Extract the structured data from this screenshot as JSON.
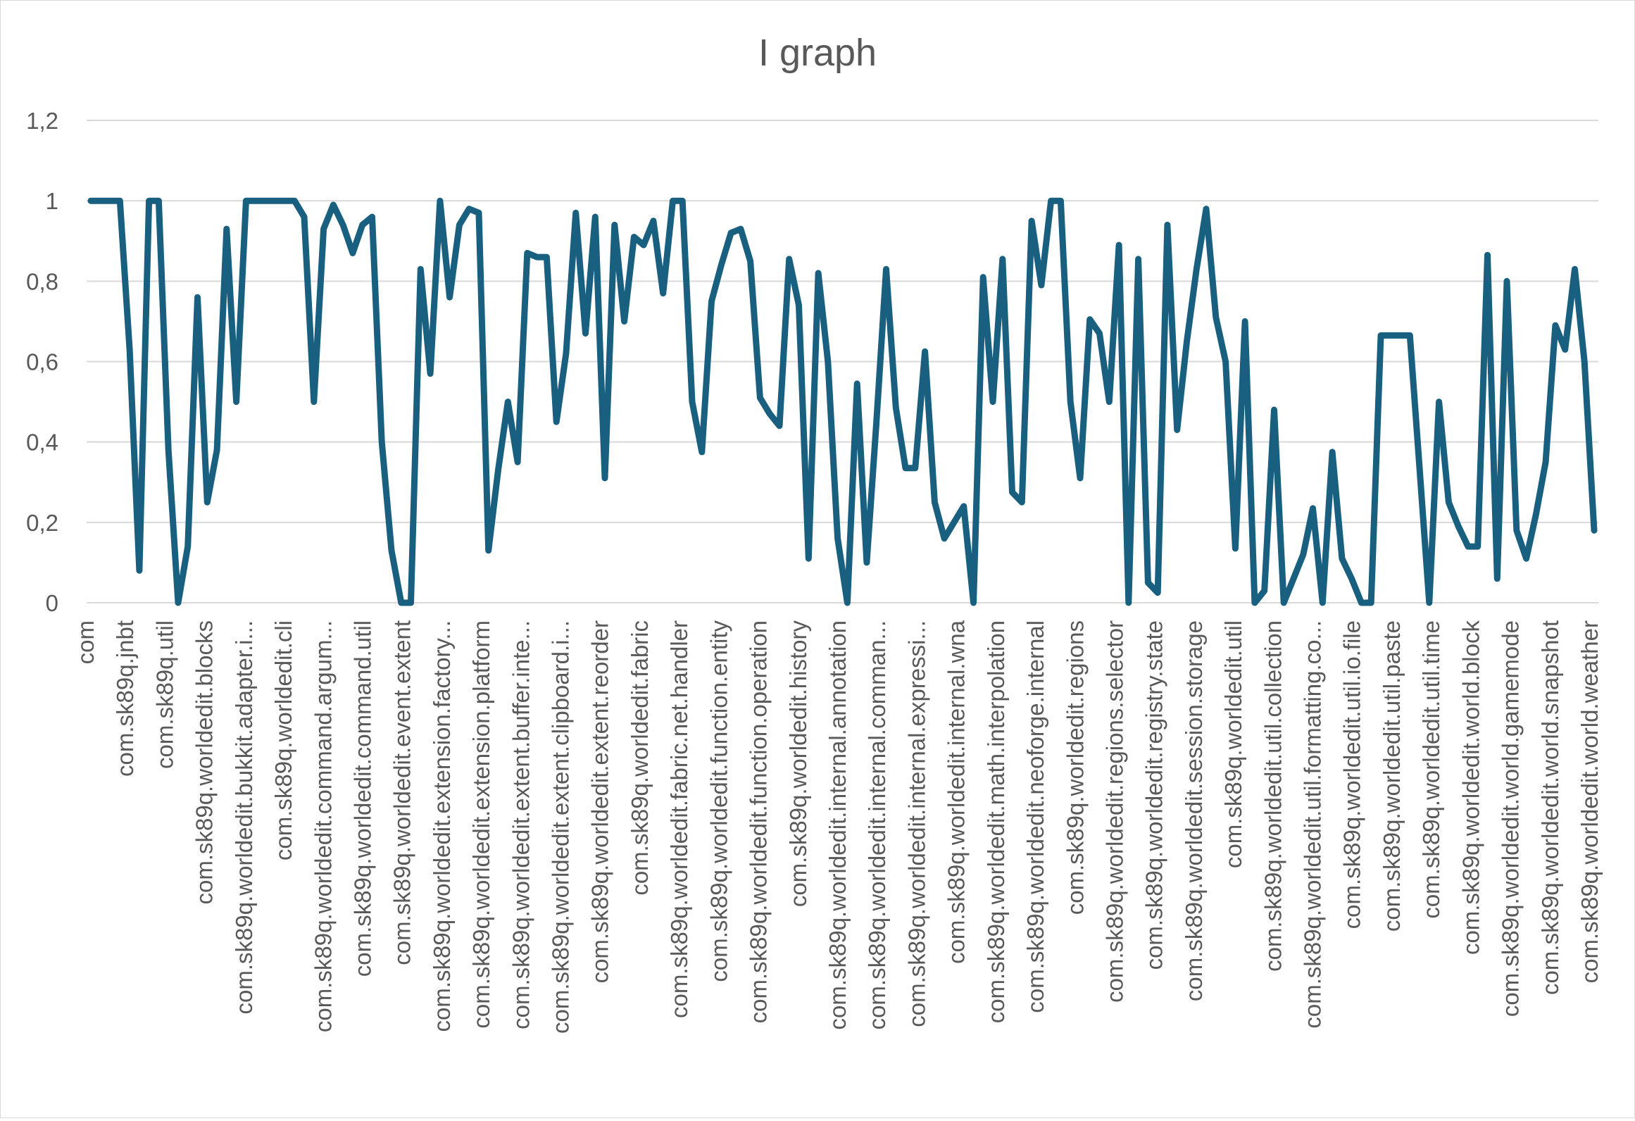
{
  "chart_data": {
    "type": "line",
    "title": "I graph",
    "xlabel": "",
    "ylabel": "",
    "ylim": [
      0,
      1.2
    ],
    "ytick_labels": [
      "0",
      "0,2",
      "0,4",
      "0,6",
      "0,8",
      "1",
      "1,2"
    ],
    "grid": true,
    "legend": "none",
    "color": "#185f80",
    "x_tick_labels": [
      "com",
      "com.sk89q.jnbt",
      "com.sk89q.util",
      "com.sk89q.worldedit.blocks",
      "com.sk89q.worldedit.bukkit.adapter.i...",
      "com.sk89q.worldedit.cli",
      "com.sk89q.worldedit.command.argum...",
      "com.sk89q.worldedit.command.util",
      "com.sk89q.worldedit.event.extent",
      "com.sk89q.worldedit.extension.factory...",
      "com.sk89q.worldedit.extension.platform",
      "com.sk89q.worldedit.extent.buffer.inte...",
      "com.sk89q.worldedit.extent.clipboard.i...",
      "com.sk89q.worldedit.extent.reorder",
      "com.sk89q.worldedit.fabric",
      "com.sk89q.worldedit.fabric.net.handler",
      "com.sk89q.worldedit.function.entity",
      "com.sk89q.worldedit.function.operation",
      "com.sk89q.worldedit.history",
      "com.sk89q.worldedit.internal.annotation",
      "com.sk89q.worldedit.internal.comman...",
      "com.sk89q.worldedit.internal.expressi...",
      "com.sk89q.worldedit.internal.wna",
      "com.sk89q.worldedit.math.interpolation",
      "com.sk89q.worldedit.neoforge.internal",
      "com.sk89q.worldedit.regions",
      "com.sk89q.worldedit.regions.selector",
      "com.sk89q.worldedit.registry.state",
      "com.sk89q.worldedit.session.storage",
      "com.sk89q.worldedit.util",
      "com.sk89q.worldedit.util.collection",
      "com.sk89q.worldedit.util.formatting.co...",
      "com.sk89q.worldedit.util.io.file",
      "com.sk89q.worldedit.util.paste",
      "com.sk89q.worldedit.util.time",
      "com.sk89q.worldedit.world.block",
      "com.sk89q.worldedit.world.gamemode",
      "com.sk89q.worldedit.world.snapshot",
      "com.sk89q.worldedit.world.weather"
    ],
    "series": [
      {
        "values": [
          1,
          1,
          1,
          1,
          0.63,
          0.08,
          1,
          1,
          0.38,
          0,
          0.14,
          0.76,
          0.25,
          0.38,
          0.93,
          0.5,
          1,
          1,
          1,
          1,
          1,
          1,
          0.96,
          0.5,
          0.93,
          0.99,
          0.94,
          0.87,
          0.94,
          0.96,
          0.4,
          0.13,
          0,
          0,
          0.83,
          0.57,
          1,
          0.76,
          0.94,
          0.98,
          0.97,
          0.13,
          0.33,
          0.5,
          0.35,
          0.87,
          0.86,
          0.86,
          0.45,
          0.62,
          0.97,
          0.67,
          0.96,
          0.31,
          0.94,
          0.7,
          0.91,
          0.89,
          0.95,
          0.77,
          1,
          1,
          0.5,
          0.375,
          0.75,
          0.84,
          0.92,
          0.93,
          0.85,
          0.51,
          0.47,
          0.44,
          0.855,
          0.74,
          0.11,
          0.82,
          0.6,
          0.16,
          0,
          0.545,
          0.1,
          0.45,
          0.83,
          0.485,
          0.335,
          0.335,
          0.625,
          0.25,
          0.16,
          0.2,
          0.24,
          0,
          0.81,
          0.5,
          0.855,
          0.275,
          0.25,
          0.95,
          0.79,
          1,
          1,
          0.5,
          0.31,
          0.705,
          0.67,
          0.5,
          0.89,
          0,
          0.855,
          0.05,
          0.025,
          0.94,
          0.43,
          0.65,
          0.83,
          0.98,
          0.71,
          0.6,
          0.135,
          0.7,
          0,
          0.03,
          0.48,
          0,
          0.06,
          0.12,
          0.235,
          0,
          0.375,
          0.11,
          0.06,
          0,
          0,
          0.665,
          0.665,
          0.665,
          0.665,
          0.333,
          0,
          0.5,
          0.25,
          0.19,
          0.14,
          0.14,
          0.865,
          0.06,
          0.8,
          0.18,
          0.11,
          0.22,
          0.35,
          0.69,
          0.63,
          0.83,
          0.6,
          0.18
        ]
      }
    ]
  }
}
